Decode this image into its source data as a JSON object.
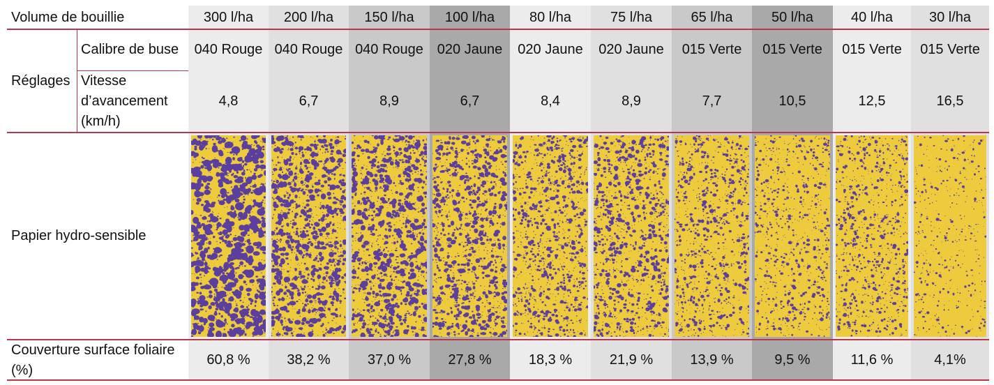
{
  "header": {
    "row_label": "Volume de bouillie",
    "volumes": [
      "300 l/ha",
      "200 l/ha",
      "150 l/ha",
      "100 l/ha",
      "80 l/ha",
      "75 l/ha",
      "65 l/ha",
      "50 l/ha",
      "40 l/ha",
      "30 l/ha"
    ]
  },
  "settings": {
    "group_label": "Réglages",
    "nozzle_label": "Calibre de buse",
    "speed_label": "Vitesse d’avancement (km/h)",
    "nozzles": [
      "040 Rouge",
      "040 Rouge",
      "040 Rouge",
      "020 Jaune",
      "020 Jaune",
      "020 Jaune",
      "015 Verte",
      "015 Verte",
      "015 Verte",
      "015 Verte"
    ],
    "speeds": [
      "4,8",
      "6,7",
      "8,9",
      "6,7",
      "8,4",
      "8,9",
      "7,7",
      "10,5",
      "12,5",
      "16,5"
    ]
  },
  "paper": {
    "label": "Papier hydro-sensible",
    "coverage_fraction": [
      0.608,
      0.382,
      0.37,
      0.278,
      0.183,
      0.219,
      0.139,
      0.095,
      0.116,
      0.041
    ]
  },
  "coverage": {
    "label": "Couverture surface foliaire (%)",
    "values": [
      "60,8 %",
      "38,2 %",
      "37,0 %",
      "27,8 %",
      "18,3 %",
      "21,9 %",
      "13,9 %",
      "9,5 %",
      "11,6 %",
      "4,1%"
    ]
  },
  "colors": {
    "accent_rule": "#b7364a",
    "paper_yellow": "#edcb3c",
    "droplet_violet": "#5b3f9e",
    "column_shades": [
      "#ececec",
      "#e0e0e1",
      "#c9c9ca",
      "#a9a9aa",
      "#ececec",
      "#e0e0e1",
      "#c9c9ca",
      "#a9a9aa",
      "#ececec",
      "#e0e0e1"
    ]
  }
}
